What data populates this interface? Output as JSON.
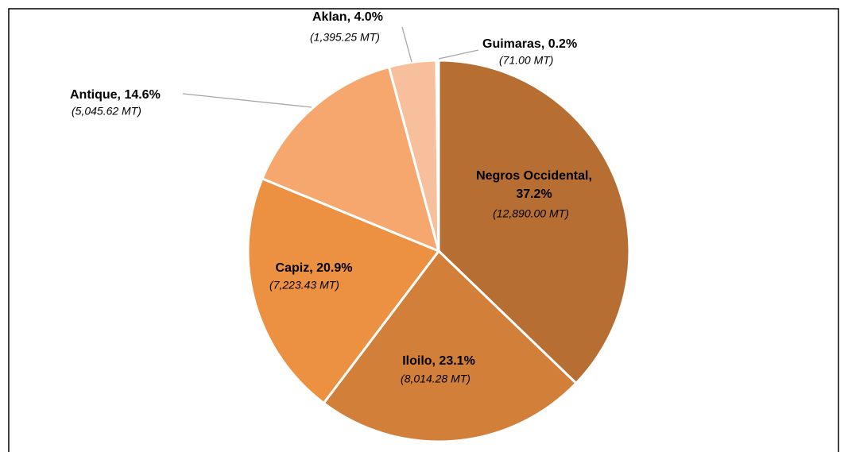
{
  "chart_data": {
    "type": "pie",
    "labels": [
      "Negros Occidental, 37.2%",
      "Iloilo, 23.1%",
      "Capiz, 20.9%",
      "Antique, 14.6%",
      "Aklan, 4.0%",
      "Guimaras, 0.2%"
    ],
    "values": [
      37.2,
      23.1,
      20.9,
      14.6,
      4.0,
      0.2
    ],
    "tonnage": [
      12890.0,
      8014.28,
      7223.43,
      5045.62,
      1395.25,
      71.0
    ],
    "tonnage_labels": [
      "(12,890.00 MT)",
      "(8,014.28 MT)",
      "(7,223.43 MT)",
      "(5,045.62 MT)",
      "(1,395.25 MT)",
      "(71.00 MT)"
    ],
    "colors": [
      "#b66e32",
      "#d27f3a",
      "#ec9042",
      "#f6a76d",
      "#f8bf9c",
      "#f9d3ba"
    ]
  }
}
